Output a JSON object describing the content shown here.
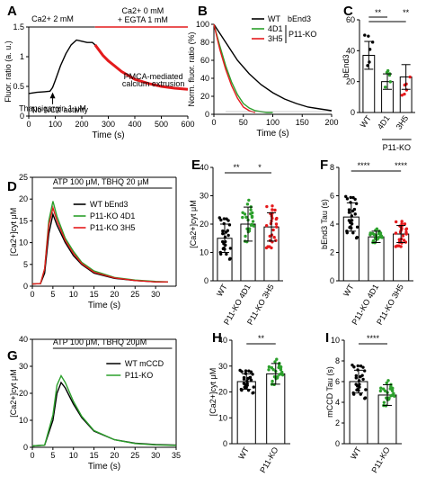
{
  "figure": {
    "panels": [
      "A",
      "B",
      "C",
      "D",
      "E",
      "F",
      "G",
      "H",
      "I"
    ]
  },
  "colors": {
    "black": "#000000",
    "red": "#e41a1c",
    "green": "#2ca02c",
    "gray": "#9e9e9e"
  },
  "chart_data": [
    {
      "panel": "A",
      "type": "line",
      "ylabel": "Fluor. ratio (a. u.)",
      "xlabel": "Time (s)",
      "xlim": [
        0,
        600
      ],
      "ylim": [
        0,
        1.5
      ],
      "xticks": [
        0,
        100,
        200,
        300,
        400,
        500,
        600
      ],
      "yticks": [
        0.0,
        0.5,
        1.0,
        1.5
      ],
      "annotations": {
        "bar1": "Ca2+ 2 mM",
        "bar2_line1": "Ca2+ 0 mM",
        "bar2_line2": "+ EGTA 1 mM",
        "arrow": "Thapsigargin 1 μM",
        "pmca_line1": "PMCA-mediated",
        "pmca_line2": "calcium extrusion",
        "noncx": "No NCX activity"
      },
      "series": [
        {
          "color": "black",
          "x": [
            0,
            30,
            60,
            80,
            90,
            100,
            120,
            140,
            160,
            180,
            200,
            220,
            240,
            250
          ],
          "y": [
            0.38,
            0.4,
            0.41,
            0.42,
            0.48,
            0.6,
            0.85,
            1.05,
            1.2,
            1.28,
            1.26,
            1.24,
            1.24,
            1.2
          ]
        },
        {
          "color": "red",
          "x": [
            250,
            280,
            300,
            350,
            400,
            450,
            500,
            550,
            600
          ],
          "y": [
            1.2,
            1.02,
            0.93,
            0.75,
            0.62,
            0.55,
            0.5,
            0.47,
            0.45
          ]
        }
      ]
    },
    {
      "panel": "B",
      "type": "line",
      "ylabel": "Norm. fluor. ratio (%)",
      "xlabel": "Time (s)",
      "xlim": [
        0,
        200
      ],
      "ylim": [
        0,
        100
      ],
      "xticks": [
        0,
        50,
        100,
        150,
        200
      ],
      "yticks": [
        0,
        20,
        40,
        60,
        80,
        100
      ],
      "legend": [
        "WT",
        "bEnd3",
        "4D1",
        "3H5",
        "P11-KO"
      ],
      "series": [
        {
          "name": "WT bEnd3",
          "color": "black",
          "x": [
            0,
            20,
            40,
            60,
            80,
            100,
            120,
            140,
            160,
            180,
            200
          ],
          "y": [
            100,
            80,
            60,
            45,
            33,
            24,
            17,
            12,
            8,
            6,
            4
          ]
        },
        {
          "name": "4D1",
          "color": "green",
          "x": [
            0,
            10,
            20,
            30,
            40,
            50,
            60,
            70,
            80,
            90,
            100
          ],
          "y": [
            100,
            76,
            54,
            36,
            22,
            12,
            7,
            4,
            3,
            2,
            2
          ]
        },
        {
          "name": "3H5",
          "color": "red",
          "x": [
            0,
            10,
            20,
            30,
            40,
            50,
            60,
            70
          ],
          "y": [
            100,
            72,
            50,
            32,
            18,
            8,
            4,
            2
          ]
        }
      ]
    },
    {
      "panel": "C",
      "type": "bar",
      "ylabel": "bEnd3 Tau (s)",
      "categories": [
        "WT",
        "4D1",
        "3H5"
      ],
      "group_label": "P11-KO",
      "values": [
        37,
        20,
        23
      ],
      "errors": [
        9,
        5,
        8
      ],
      "ylim": [
        0,
        60
      ],
      "yticks": [
        0,
        20,
        40,
        60
      ],
      "sig": [
        "**",
        "**"
      ]
    },
    {
      "panel": "D",
      "type": "line",
      "ylabel": "[Ca2+]cyt μM",
      "xlabel": "Time (s)",
      "xlim": [
        0,
        35
      ],
      "ylim": [
        0,
        25
      ],
      "xticks": [
        0,
        5,
        10,
        15,
        20,
        25,
        30
      ],
      "yticks": [
        0,
        5,
        10,
        15,
        20,
        25
      ],
      "stim": "ATP 100 μM, TBHQ 20 μM",
      "legend": [
        "WT  bEnd3",
        "P11-KO 4D1",
        "P11-KO 3H5"
      ],
      "series": [
        {
          "name": "WT bEnd3",
          "color": "black",
          "x": [
            0,
            2,
            3,
            4,
            5,
            6,
            8,
            10,
            12,
            15,
            20,
            25,
            30,
            33
          ],
          "y": [
            0.5,
            0.6,
            3,
            12,
            16.5,
            14,
            10,
            7,
            5,
            3,
            1.8,
            1.3,
            1.0,
            1.0
          ]
        },
        {
          "name": "P11-KO 4D1",
          "color": "green",
          "x": [
            0,
            2,
            3,
            4,
            5,
            6,
            8,
            10,
            12,
            15,
            20,
            25,
            30,
            33
          ],
          "y": [
            0.5,
            0.6,
            4,
            15,
            19.5,
            16,
            11,
            8,
            5.5,
            3.5,
            2,
            1.4,
            1.1,
            1.0
          ]
        },
        {
          "name": "P11-KO 3H5",
          "color": "red",
          "x": [
            0,
            2,
            3,
            4,
            5,
            6,
            8,
            10,
            12,
            15,
            20,
            25,
            30,
            33
          ],
          "y": [
            0.5,
            0.6,
            4,
            14,
            18,
            15,
            10.5,
            7.5,
            5.2,
            3.2,
            1.9,
            1.3,
            1.0,
            1.0
          ]
        }
      ]
    },
    {
      "panel": "E",
      "type": "bar",
      "ylabel": "[Ca2+]cyt μM",
      "categories": [
        "WT",
        "P11-KO 4D1",
        "P11-KO 3H5"
      ],
      "values": [
        15,
        20,
        19
      ],
      "errors": [
        5,
        6,
        5
      ],
      "ylim": [
        0,
        40
      ],
      "yticks": [
        0,
        10,
        20,
        30,
        40
      ],
      "sig": [
        "**",
        "*"
      ]
    },
    {
      "panel": "F",
      "type": "bar",
      "ylabel": "bEnd3 Tau (s)",
      "categories": [
        "WT",
        "P11-KO 4D1",
        "P11-KO 3H5"
      ],
      "values": [
        4.5,
        3.1,
        3.3
      ],
      "errors": [
        1.0,
        0.4,
        0.6
      ],
      "ylim": [
        0,
        8
      ],
      "yticks": [
        0,
        2,
        4,
        6,
        8
      ],
      "sig": [
        "****",
        "****"
      ]
    },
    {
      "panel": "G",
      "type": "line",
      "ylabel": "[Ca2+]cyt μM",
      "xlabel": "Time (s)",
      "xlim": [
        0,
        35
      ],
      "ylim": [
        0,
        40
      ],
      "xticks": [
        0,
        5,
        10,
        15,
        20,
        25,
        30,
        35
      ],
      "yticks": [
        0,
        10,
        20,
        30,
        40
      ],
      "stim": "ATP 100 μM, TBHQ 20μM",
      "legend": [
        "WT mCCD",
        "P11-KO"
      ],
      "series": [
        {
          "name": "WT mCCD",
          "color": "black",
          "x": [
            0,
            3,
            5,
            6,
            7,
            8,
            10,
            12,
            15,
            20,
            25,
            30,
            35
          ],
          "y": [
            0.5,
            0.8,
            10,
            20,
            24,
            22,
            16,
            11,
            6,
            2.8,
            1.5,
            1,
            0.8
          ]
        },
        {
          "name": "P11-KO",
          "color": "green",
          "x": [
            0,
            3,
            5,
            6,
            7,
            8,
            10,
            12,
            15,
            20,
            25,
            30,
            35
          ],
          "y": [
            0.5,
            0.8,
            12,
            23,
            26.5,
            24,
            17,
            11.5,
            6.2,
            2.8,
            1.4,
            0.9,
            0.7
          ]
        }
      ]
    },
    {
      "panel": "H",
      "type": "bar",
      "ylabel": "[Ca2+]cyt μM",
      "categories": [
        "WT",
        "P11-KO"
      ],
      "values": [
        24,
        27
      ],
      "errors": [
        3,
        4
      ],
      "ylim": [
        0,
        40
      ],
      "yticks": [
        0,
        10,
        20,
        30,
        40
      ],
      "sig": [
        "**"
      ]
    },
    {
      "panel": "I",
      "type": "bar",
      "ylabel": "mCCD Tau (s)",
      "categories": [
        "WT",
        "P11-KO"
      ],
      "values": [
        6.0,
        4.7
      ],
      "errors": [
        1.1,
        1.0
      ],
      "ylim": [
        0,
        10
      ],
      "yticks": [
        0,
        2,
        4,
        6,
        8,
        10
      ],
      "sig": [
        "****"
      ]
    }
  ]
}
